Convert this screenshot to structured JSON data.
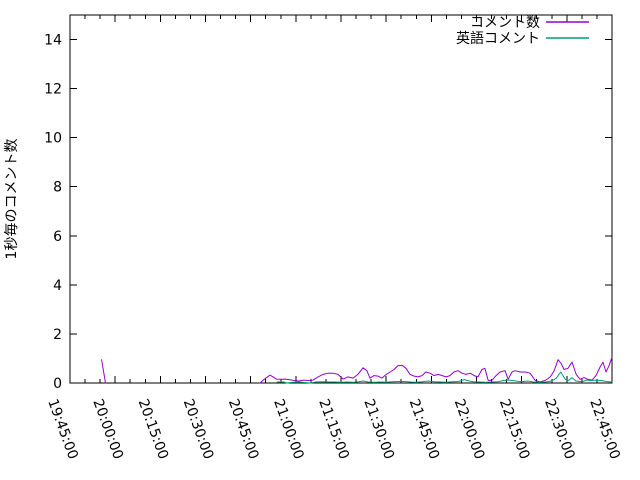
{
  "chart_data": {
    "type": "line",
    "title": "",
    "xlabel": "",
    "ylabel": "1秒毎のコメント数",
    "x_axis": {
      "start": "19:45:00",
      "end": "22:45:00",
      "range_min": 180,
      "major_step_min": 15,
      "minor_step_min": 5,
      "tick_labels": [
        "19:45:00",
        "20:00:00",
        "20:15:00",
        "20:30:00",
        "20:45:00",
        "21:00:00",
        "21:15:00",
        "21:30:00",
        "21:45:00",
        "22:00:00",
        "22:15:00",
        "22:30:00",
        "22:45:00"
      ]
    },
    "ylim": [
      0,
      15
    ],
    "y_ticks": [
      0,
      2,
      4,
      6,
      8,
      10,
      12,
      14
    ],
    "grid": false,
    "legend": {
      "position": "top-right-inside",
      "entries": [
        {
          "key": "comments",
          "label": "コメント数",
          "color": "#9400d3"
        },
        {
          "key": "english-comments",
          "label": "英語コメント",
          "color": "#009e73"
        }
      ]
    },
    "series": [
      {
        "key": "comments",
        "name": "コメント数",
        "color": "#9400d3",
        "x_unit": "minutes-after-19:45:00",
        "segments": [
          [
            [
              10.5,
              0.95
            ],
            [
              11.8,
              0.0
            ]
          ],
          [
            [
              63.1,
              0.0
            ],
            [
              64.5,
              0.15
            ],
            [
              66.4,
              0.32
            ],
            [
              67.5,
              0.24
            ],
            [
              68.5,
              0.16
            ],
            [
              70.0,
              0.15
            ],
            [
              71.5,
              0.16
            ],
            [
              73.0,
              0.13
            ],
            [
              74.5,
              0.1
            ],
            [
              76.0,
              0.08
            ],
            [
              77.5,
              0.12
            ],
            [
              79.0,
              0.1
            ],
            [
              80.7,
              0.12
            ],
            [
              82.4,
              0.25
            ],
            [
              84.0,
              0.35
            ],
            [
              85.7,
              0.4
            ],
            [
              87.3,
              0.4
            ],
            [
              89.0,
              0.35
            ],
            [
              90.7,
              0.16
            ],
            [
              92.3,
              0.25
            ],
            [
              94.0,
              0.2
            ],
            [
              95.6,
              0.35
            ],
            [
              97.3,
              0.62
            ],
            [
              98.6,
              0.5
            ],
            [
              99.6,
              0.2
            ],
            [
              101.0,
              0.3
            ],
            [
              102.3,
              0.28
            ],
            [
              103.6,
              0.2
            ],
            [
              105.0,
              0.35
            ],
            [
              106.3,
              0.45
            ],
            [
              107.6,
              0.55
            ],
            [
              108.9,
              0.7
            ],
            [
              110.3,
              0.72
            ],
            [
              111.6,
              0.6
            ],
            [
              112.9,
              0.35
            ],
            [
              114.3,
              0.28
            ],
            [
              115.6,
              0.25
            ],
            [
              116.9,
              0.3
            ],
            [
              118.2,
              0.45
            ],
            [
              119.6,
              0.4
            ],
            [
              120.9,
              0.3
            ],
            [
              122.2,
              0.35
            ],
            [
              123.6,
              0.3
            ],
            [
              124.9,
              0.25
            ],
            [
              126.2,
              0.3
            ],
            [
              127.5,
              0.45
            ],
            [
              128.9,
              0.5
            ],
            [
              130.2,
              0.4
            ],
            [
              131.5,
              0.35
            ],
            [
              132.9,
              0.4
            ],
            [
              134.2,
              0.3
            ],
            [
              135.5,
              0.25
            ],
            [
              136.8,
              0.55
            ],
            [
              137.8,
              0.6
            ],
            [
              138.9,
              0.1
            ],
            [
              140.2,
              0.12
            ],
            [
              141.5,
              0.3
            ],
            [
              142.8,
              0.45
            ],
            [
              144.5,
              0.5
            ],
            [
              145.5,
              0.15
            ],
            [
              146.8,
              0.45
            ],
            [
              147.8,
              0.5
            ],
            [
              149.5,
              0.45
            ],
            [
              151.2,
              0.45
            ],
            [
              152.8,
              0.4
            ],
            [
              154.5,
              0.1
            ],
            [
              156.1,
              0.05
            ],
            [
              157.8,
              0.1
            ],
            [
              159.5,
              0.25
            ],
            [
              160.8,
              0.5
            ],
            [
              162.1,
              0.95
            ],
            [
              163.1,
              0.8
            ],
            [
              164.1,
              0.55
            ],
            [
              165.4,
              0.6
            ],
            [
              166.7,
              0.85
            ],
            [
              168.1,
              0.35
            ],
            [
              169.4,
              0.15
            ],
            [
              170.7,
              0.22
            ],
            [
              172.0,
              0.15
            ],
            [
              173.4,
              0.12
            ],
            [
              174.7,
              0.3
            ],
            [
              176.0,
              0.65
            ],
            [
              177.0,
              0.85
            ],
            [
              178.0,
              0.45
            ],
            [
              179.0,
              0.7
            ],
            [
              180.0,
              1.05
            ]
          ]
        ]
      },
      {
        "key": "english-comments",
        "name": "英語コメント",
        "color": "#009e73",
        "x_unit": "minutes-after-19:45:00",
        "segments": [
          [
            [
              68.8,
              0.04
            ],
            [
              71.0,
              0.04
            ],
            [
              72.0,
              0.0
            ],
            [
              74.0,
              0.03
            ],
            [
              76.0,
              0.04
            ],
            [
              78.0,
              0.02
            ],
            [
              80.0,
              0.0
            ],
            [
              81.5,
              0.04
            ],
            [
              84.0,
              0.05
            ],
            [
              86.0,
              0.04
            ],
            [
              88.0,
              0.04
            ],
            [
              90.0,
              0.03
            ],
            [
              92.0,
              0.04
            ],
            [
              94.0,
              0.03
            ],
            [
              96.0,
              0.05
            ],
            [
              97.3,
              0.08
            ],
            [
              99.0,
              0.04
            ],
            [
              101.0,
              0.03
            ],
            [
              103.0,
              0.04
            ],
            [
              105.0,
              0.03
            ],
            [
              107.0,
              0.05
            ],
            [
              109.0,
              0.06
            ],
            [
              111.0,
              0.06
            ],
            [
              113.0,
              0.04
            ],
            [
              115.0,
              0.03
            ],
            [
              117.0,
              0.05
            ],
            [
              119.0,
              0.08
            ],
            [
              121.0,
              0.05
            ],
            [
              123.0,
              0.04
            ],
            [
              125.0,
              0.03
            ],
            [
              127.0,
              0.05
            ],
            [
              129.0,
              0.06
            ],
            [
              131.0,
              0.14
            ],
            [
              132.5,
              0.08
            ],
            [
              134.0,
              0.05
            ],
            [
              136.0,
              0.04
            ],
            [
              138.0,
              0.03
            ],
            [
              140.0,
              0.04
            ],
            [
              142.0,
              0.05
            ],
            [
              144.0,
              0.1
            ],
            [
              146.0,
              0.12
            ],
            [
              148.0,
              0.08
            ],
            [
              150.0,
              0.05
            ],
            [
              152.0,
              0.08
            ],
            [
              154.0,
              0.04
            ],
            [
              156.0,
              0.03
            ],
            [
              158.0,
              0.04
            ],
            [
              160.0,
              0.08
            ],
            [
              161.5,
              0.2
            ],
            [
              163.0,
              0.45
            ],
            [
              164.5,
              0.15
            ],
            [
              165.5,
              0.1
            ],
            [
              166.7,
              0.22
            ],
            [
              168.0,
              0.08
            ],
            [
              170.0,
              0.05
            ],
            [
              171.5,
              0.12
            ],
            [
              173.0,
              0.1
            ],
            [
              175.0,
              0.12
            ],
            [
              176.5,
              0.1
            ],
            [
              178.0,
              0.06
            ],
            [
              180.0,
              0.04
            ]
          ]
        ]
      }
    ],
    "colors": {
      "background": "#ffffff",
      "border": "#000000",
      "text": "#000000"
    }
  }
}
